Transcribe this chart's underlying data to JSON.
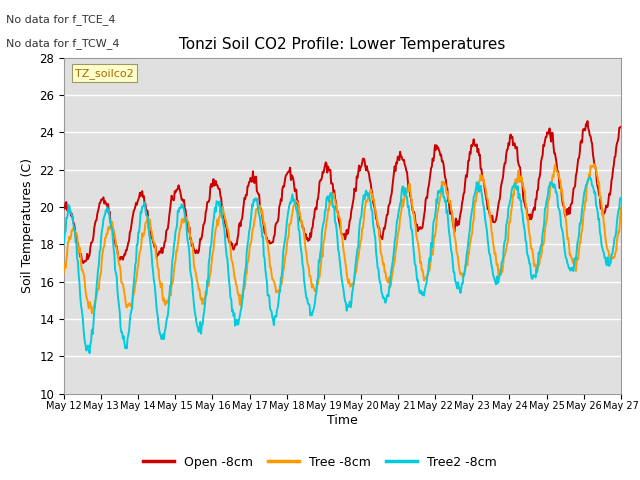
{
  "title": "Tonzi Soil CO2 Profile: Lower Temperatures",
  "ylabel": "Soil Temperatures (C)",
  "xlabel": "Time",
  "top_annotation_line1": "No data for f_TCE_4",
  "top_annotation_line2": "No data for f_TCW_4",
  "dataset_label": "TZ_soilco2",
  "legend_entries": [
    "Open -8cm",
    "Tree -8cm",
    "Tree2 -8cm"
  ],
  "legend_colors": [
    "#cc0000",
    "#ff9900",
    "#00ccdd"
  ],
  "ylim": [
    10,
    28
  ],
  "yticks": [
    10,
    12,
    14,
    16,
    18,
    20,
    22,
    24,
    26,
    28
  ],
  "background_color": "#ffffff",
  "plot_bg_color": "#e0e0e0",
  "grid_color": "#ffffff",
  "start_day": 12,
  "end_day": 27
}
